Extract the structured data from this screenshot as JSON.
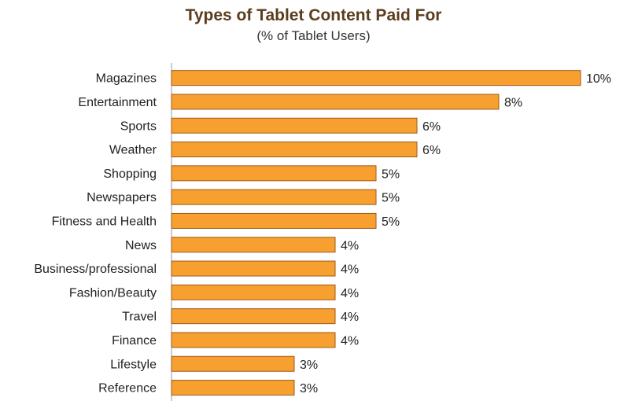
{
  "chart_data": {
    "type": "bar",
    "orientation": "horizontal",
    "title": "Types of Tablet Content Paid For",
    "subtitle": "(% of Tablet Users)",
    "categories": [
      "Magazines",
      "Entertainment",
      "Sports",
      "Weather",
      "Shopping",
      "Newspapers",
      "Fitness and Health",
      "News",
      "Business/professional",
      "Fashion/Beauty",
      "Travel",
      "Finance",
      "Lifestyle",
      "Reference"
    ],
    "values": [
      10,
      8,
      6,
      6,
      5,
      5,
      5,
      4,
      4,
      4,
      4,
      4,
      3,
      3
    ],
    "value_labels": [
      "10%",
      "8%",
      "6%",
      "6%",
      "5%",
      "5%",
      "5%",
      "4%",
      "4%",
      "4%",
      "4%",
      "4%",
      "3%",
      "3%"
    ],
    "xlim": [
      0,
      10
    ],
    "bar_color": "#f7a030",
    "bar_edge_color": "#a05a1a",
    "axis_color": "#999999",
    "grid": false,
    "legend": "none"
  }
}
